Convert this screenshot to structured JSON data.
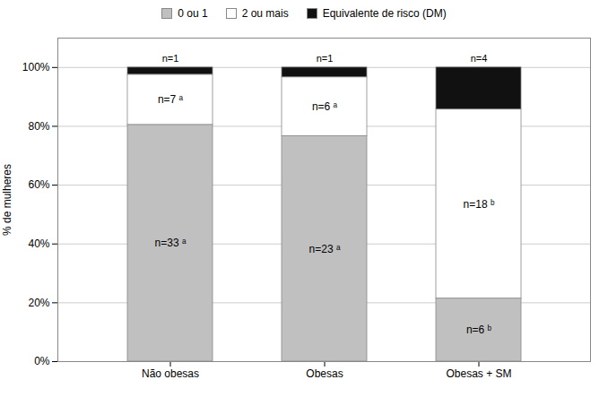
{
  "chart_data": {
    "type": "bar",
    "stacked": true,
    "categories": [
      "Não obesas",
      "Obesas",
      "Obesas + SM"
    ],
    "series": [
      {
        "name": "0 ou 1",
        "color": "#c0c0c0",
        "values": [
          80.49,
          76.67,
          21.43
        ],
        "annotations": [
          "n=33 ᵃ",
          "n=23 ᵃ",
          "n=6 ᵇ"
        ]
      },
      {
        "name": "2 ou mais",
        "color": "#ffffff",
        "values": [
          17.07,
          20.0,
          64.29
        ],
        "annotations": [
          "n=7 ᵃ",
          "n=6 ᵃ",
          "n=18 ᵇ"
        ]
      },
      {
        "name": "Equivalente de risco (DM)",
        "color": "#111111",
        "values": [
          2.44,
          3.33,
          14.29
        ],
        "annotations": [
          "n=1",
          "n=1",
          "n=4"
        ]
      }
    ],
    "ylabel": "% de mulheres",
    "ylim": [
      0,
      110
    ],
    "yticks": [
      {
        "value": 0,
        "label": "0%"
      },
      {
        "value": 20,
        "label": "20%"
      },
      {
        "value": 40,
        "label": "40%"
      },
      {
        "value": 60,
        "label": "60%"
      },
      {
        "value": 80,
        "label": "80%"
      },
      {
        "value": 100,
        "label": "100%"
      }
    ],
    "grid": true,
    "legend": "top"
  }
}
